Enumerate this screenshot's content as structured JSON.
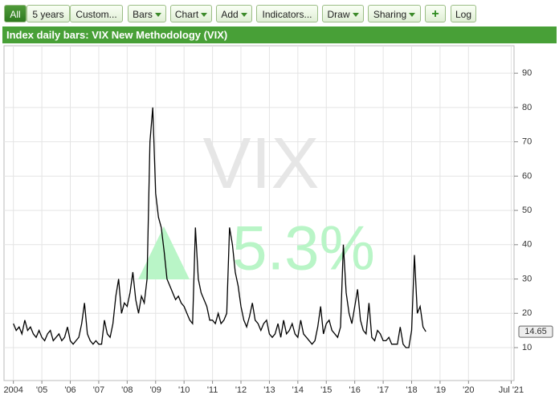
{
  "toolbar": [
    "All",
    "5 years",
    "Custom...",
    "Bars",
    "Chart",
    "Add",
    "Indicators...",
    "Draw",
    "Sharing",
    "+",
    "Log"
  ],
  "chart_data": {
    "type": "line",
    "title": "Index daily bars: VIX New Methodology (VIX)",
    "watermark": "VIX",
    "change": "5.3%",
    "last_price": 14.65,
    "color": "#000000",
    "x": [
      2004.0,
      2004.1,
      2004.2,
      2004.3,
      2004.4,
      2004.5,
      2004.6,
      2004.7,
      2004.8,
      2004.9,
      2005.0,
      2005.1,
      2005.2,
      2005.3,
      2005.4,
      2005.5,
      2005.6,
      2005.7,
      2005.8,
      2005.9,
      2006.0,
      2006.1,
      2006.2,
      2006.3,
      2006.4,
      2006.5,
      2006.6,
      2006.7,
      2006.8,
      2006.9,
      2007.0,
      2007.1,
      2007.2,
      2007.3,
      2007.4,
      2007.5,
      2007.6,
      2007.7,
      2007.8,
      2007.9,
      2008.0,
      2008.1,
      2008.2,
      2008.3,
      2008.4,
      2008.5,
      2008.6,
      2008.7,
      2008.8,
      2008.9,
      2009.0,
      2009.1,
      2009.2,
      2009.3,
      2009.4,
      2009.5,
      2009.6,
      2009.7,
      2009.8,
      2009.9,
      2010.0,
      2010.1,
      2010.2,
      2010.3,
      2010.4,
      2010.5,
      2010.6,
      2010.7,
      2010.8,
      2010.9,
      2011.0,
      2011.1,
      2011.2,
      2011.3,
      2011.4,
      2011.5,
      2011.6,
      2011.7,
      2011.8,
      2011.9,
      2012.0,
      2012.1,
      2012.2,
      2012.3,
      2012.4,
      2012.5,
      2012.6,
      2012.7,
      2012.8,
      2012.9,
      2013.0,
      2013.1,
      2013.2,
      2013.3,
      2013.4,
      2013.5,
      2013.6,
      2013.7,
      2013.8,
      2013.9,
      2014.0,
      2014.1,
      2014.2,
      2014.3,
      2014.4,
      2014.5,
      2014.6,
      2014.7,
      2014.8,
      2014.9,
      2015.0,
      2015.1,
      2015.2,
      2015.3,
      2015.4,
      2015.5,
      2015.6,
      2015.7,
      2015.8,
      2015.9,
      2016.0,
      2016.1,
      2016.2,
      2016.3,
      2016.4,
      2016.5,
      2016.6,
      2016.7,
      2016.8,
      2016.9,
      2017.0,
      2017.1,
      2017.2,
      2017.3,
      2017.4,
      2017.5,
      2017.6,
      2017.7,
      2017.8,
      2017.9,
      2018.0,
      2018.1,
      2018.2,
      2018.3,
      2018.4,
      2018.5
    ],
    "values": [
      17,
      15,
      16,
      14,
      18,
      15,
      16,
      14,
      13,
      15,
      13,
      12,
      14,
      15,
      12,
      13,
      14,
      12,
      13,
      16,
      12,
      11,
      12,
      13,
      17,
      23,
      14,
      12,
      11,
      12,
      11,
      11,
      18,
      14,
      13,
      17,
      25,
      30,
      20,
      23,
      22,
      26,
      32,
      24,
      20,
      25,
      23,
      30,
      70,
      80,
      55,
      48,
      45,
      38,
      30,
      28,
      26,
      24,
      25,
      23,
      22,
      20,
      18,
      17,
      45,
      30,
      26,
      24,
      22,
      18,
      18,
      17,
      20,
      17,
      18,
      20,
      45,
      40,
      32,
      28,
      22,
      18,
      16,
      19,
      23,
      18,
      17,
      15,
      17,
      18,
      14,
      13,
      14,
      17,
      13,
      18,
      14,
      15,
      17,
      14,
      13,
      18,
      14,
      13,
      12,
      11,
      12,
      16,
      22,
      14,
      17,
      18,
      15,
      14,
      13,
      16,
      40,
      26,
      20,
      17,
      22,
      27,
      18,
      15,
      14,
      23,
      13,
      12,
      15,
      14,
      12,
      12,
      13,
      11,
      11,
      11,
      16,
      11,
      10,
      10,
      15,
      37,
      20,
      22,
      16,
      14.65
    ],
    "xlim": [
      2003.67,
      2021.6
    ],
    "ylim": [
      0.4,
      98
    ],
    "yticks": [
      10,
      20,
      30,
      40,
      50,
      60,
      70,
      80,
      90
    ],
    "xticks": [
      {
        "value": 2004,
        "label": "2004"
      },
      {
        "value": 2005,
        "label": "'05"
      },
      {
        "value": 2006,
        "label": "'06"
      },
      {
        "value": 2007,
        "label": "'07"
      },
      {
        "value": 2008,
        "label": "'08"
      },
      {
        "value": 2009,
        "label": "'09"
      },
      {
        "value": 2010,
        "label": "'10"
      },
      {
        "value": 2011,
        "label": "'11"
      },
      {
        "value": 2012,
        "label": "'12"
      },
      {
        "value": 2013,
        "label": "'13"
      },
      {
        "value": 2014,
        "label": "'14"
      },
      {
        "value": 2015,
        "label": "'15"
      },
      {
        "value": 2016,
        "label": "'16"
      },
      {
        "value": 2017,
        "label": "'17"
      },
      {
        "value": 2018,
        "label": "'18"
      },
      {
        "value": 2019,
        "label": "'19"
      },
      {
        "value": 2020,
        "label": "'20"
      },
      {
        "value": 2021.5,
        "label": "Jul '21"
      }
    ],
    "grid": true
  }
}
